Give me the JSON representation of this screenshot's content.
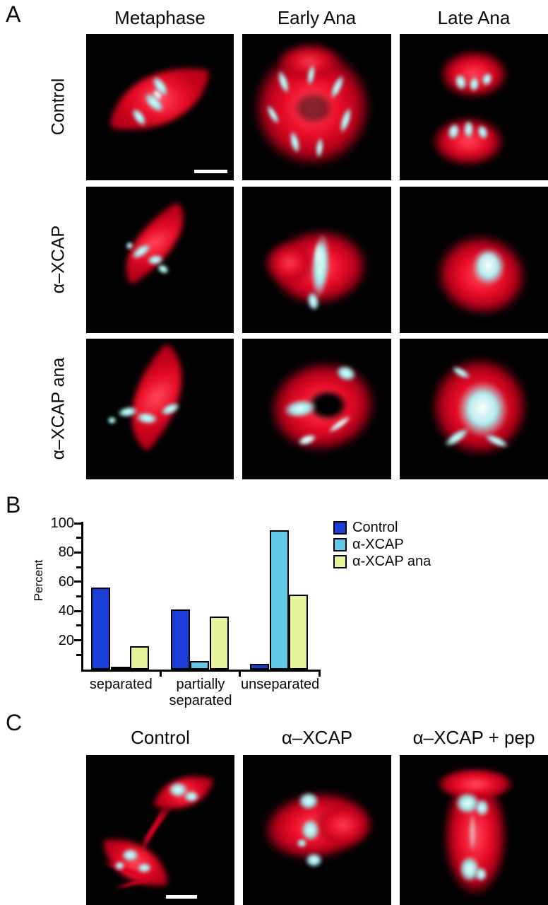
{
  "figure": {
    "panelA": {
      "label": "A",
      "col_headers": [
        "Metaphase",
        "Early Ana",
        "Late Ana"
      ],
      "row_labels": [
        "Control",
        "α–XCAP",
        "α–XCAP ana"
      ]
    },
    "panelB": {
      "label": "B"
    },
    "panelC": {
      "label": "C",
      "col_headers": [
        "Control",
        "α–XCAP",
        "α–XCAP + pep"
      ]
    }
  },
  "chart_data": {
    "type": "bar",
    "title": "",
    "xlabel": "",
    "ylabel": "Percent",
    "ylim": [
      0,
      100
    ],
    "ytick_major": [
      20,
      40,
      60,
      80,
      100
    ],
    "ytick_minor_step": 10,
    "grid": false,
    "legend_position": "right",
    "categories": [
      "separated",
      "partially\nseparated",
      "unseparated"
    ],
    "series": [
      {
        "name": "Control",
        "color": "#1b3fd6",
        "values": [
          56,
          41,
          4
        ]
      },
      {
        "name": "α-XCAP",
        "color": "#63c9e8",
        "values": [
          2,
          6,
          95
        ]
      },
      {
        "name": "α-XCAP ana",
        "color": "#e8f49a",
        "values": [
          16,
          36,
          51
        ]
      }
    ]
  }
}
